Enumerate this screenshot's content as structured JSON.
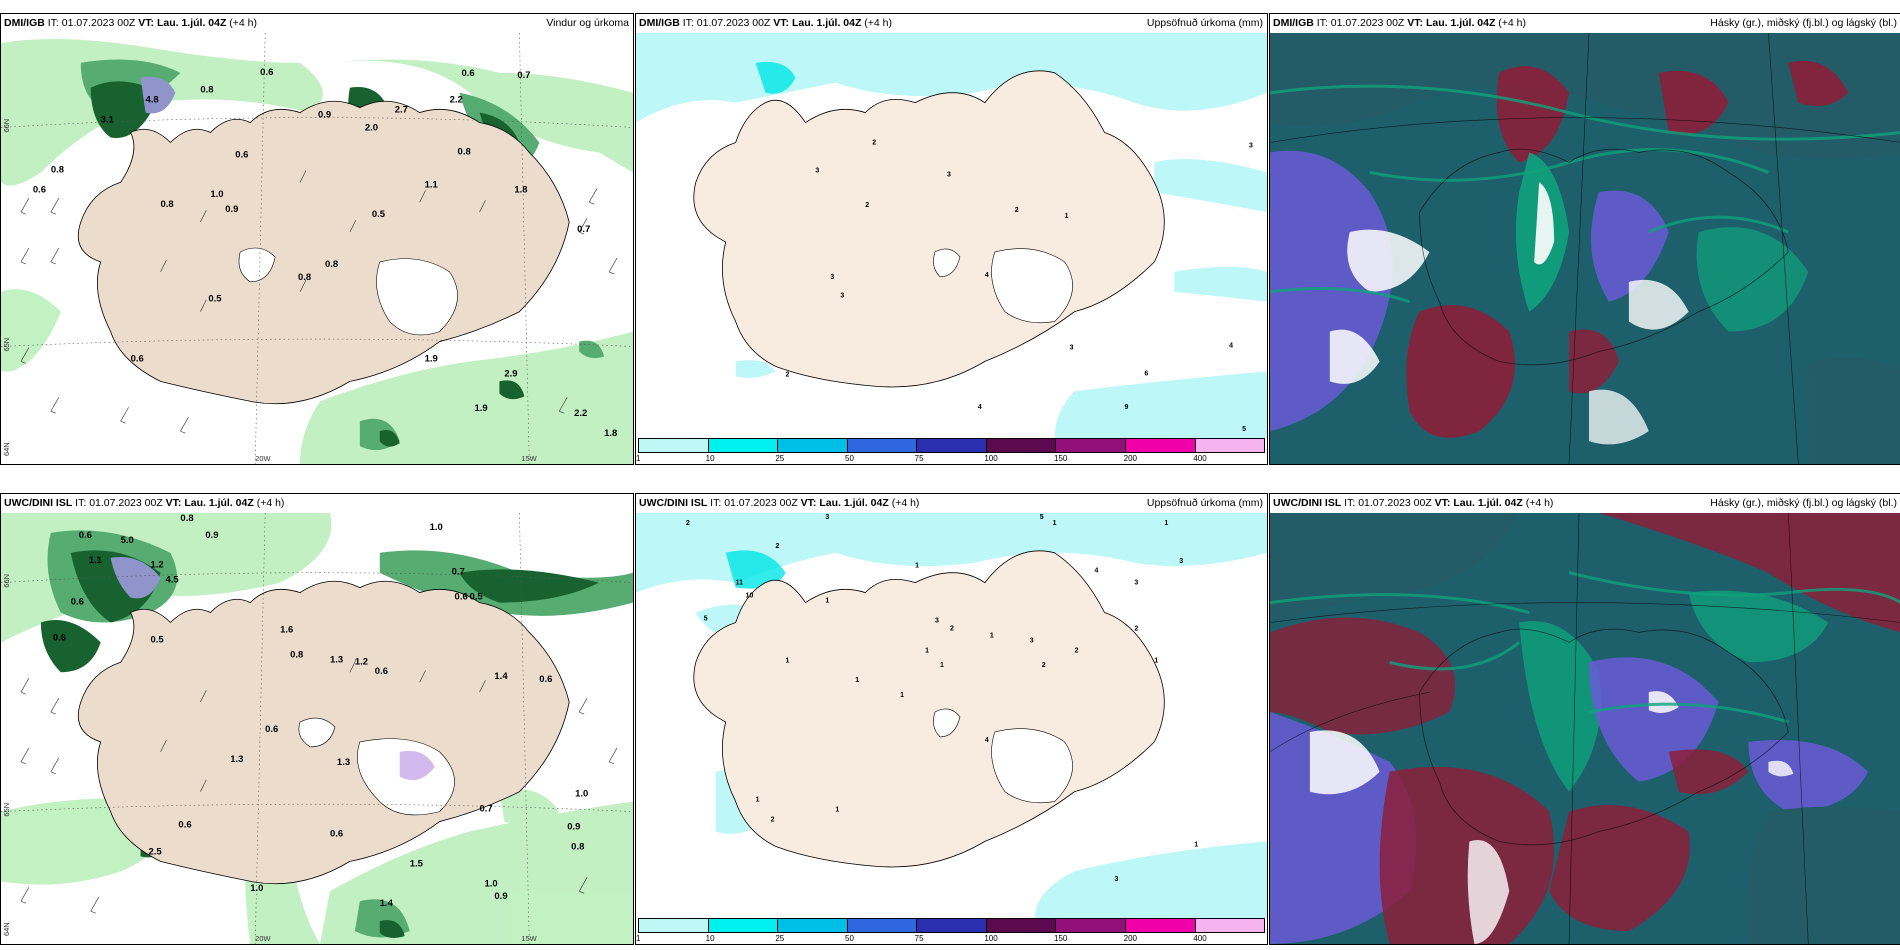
{
  "row1": {
    "p1": {
      "model": "DMI/IGB",
      "it_label": "IT:",
      "it": "01.07.2023 00Z",
      "vt_label": "VT:",
      "vt": "Lau. 1.júl. 04Z",
      "lead": "(+4 h)",
      "product": "Vindur og úrkoma",
      "values": [
        "0.6",
        "0.8",
        "3.1",
        "4.8",
        "0.8",
        "0.6",
        "0.6",
        "0.8",
        "1.0",
        "0.9",
        "0.6",
        "0.7",
        "2.7",
        "2.2",
        "0.9",
        "2.0",
        "0.8",
        "1.1",
        "0.5",
        "1.8",
        "0.7",
        "0.8",
        "0.5",
        "0.6",
        "0.8",
        "1.9",
        "1.9",
        "2.2",
        "1.8",
        "2.9"
      ],
      "axis": [
        "66N",
        "65N",
        "64N",
        "25W",
        "20W",
        "15W"
      ]
    },
    "p2": {
      "model": "DMI/IGB",
      "it_label": "IT:",
      "it": "01.07.2023 00Z",
      "vt_label": "VT:",
      "vt": "Lau. 1.júl. 04Z",
      "lead": "(+4 h)",
      "product": "Uppsöfnuð úrkoma (mm)",
      "values": [
        "2",
        "3",
        "3",
        "2",
        "2",
        "1",
        "3",
        "4",
        "3",
        "3",
        "2",
        "4",
        "6",
        "9",
        "4",
        "5",
        "3"
      ]
    },
    "p3": {
      "model": "DMI/IGB",
      "it_label": "IT:",
      "it": "01.07.2023 00Z",
      "vt_label": "VT:",
      "vt": "Lau. 1.júl. 04Z",
      "lead": "(+4 h)",
      "product": "Hásky (gr.), miðský (fj.bl.) og lágský (bl.)"
    }
  },
  "row2": {
    "p1": {
      "model": "UWC/DINI ISL",
      "it_label": "IT:",
      "it": "01.07.2023 00Z",
      "vt_label": "VT:",
      "vt": "Lau. 1.júl. 04Z",
      "lead": "(+4 h)",
      "product": "",
      "values": [
        "0.6",
        "0.8",
        "0.9",
        "1.0",
        "5.0",
        "4.5",
        "1.1",
        "1.2",
        "0.6",
        "0.6",
        "0.5",
        "0.8",
        "1.3",
        "1.2",
        "0.6",
        "0.7",
        "0.6",
        "0.5",
        "1.3",
        "1.4",
        "0.6",
        "1.6",
        "2.5",
        "0.6",
        "0.7",
        "1.0",
        "0.9",
        "0.8",
        "0.6",
        "1.0",
        "1.4",
        "1.5",
        "0.6",
        "1.0",
        "0.9",
        "1.3"
      ],
      "axis": [
        "66N",
        "65N",
        "64N",
        "25W",
        "20W",
        "15W"
      ]
    },
    "p2": {
      "model": "UWC/DINI ISL",
      "it_label": "IT:",
      "it": "01.07.2023 00Z",
      "vt_label": "VT:",
      "vt": "Lau. 1.júl. 04Z",
      "lead": "(+4 h)",
      "product": "Uppsöfnuð úrkoma (mm)",
      "values": [
        "2",
        "3",
        "1",
        "5",
        "1",
        "3",
        "5",
        "2",
        "10",
        "11",
        "1",
        "1",
        "1",
        "1",
        "1",
        "3",
        "2",
        "1",
        "1",
        "2",
        "3",
        "2",
        "1",
        "4",
        "4",
        "3",
        "2",
        "1",
        "1",
        "2",
        "3",
        "1",
        "1"
      ]
    },
    "p3": {
      "model": "UWC/DINI ISL",
      "it_label": "IT:",
      "it": "01.07.2023 00Z",
      "vt_label": "VT:",
      "vt": "Lau. 1.júl. 04Z",
      "lead": "(+4 h)",
      "product": "Hásky (gr.), miðský (fj.bl.) og lágský (bl.)"
    }
  },
  "colorbar": {
    "ticks": [
      "1",
      "10",
      "25",
      "50",
      "75",
      "100",
      "150",
      "200",
      "400"
    ],
    "colors": [
      "#bff7f7",
      "#00f0f0",
      "#00bfe6",
      "#2f67e0",
      "#2a2fb0",
      "#5b0a50",
      "#930f7a",
      "#f000a8",
      "#f5b4f0"
    ]
  },
  "colors": {
    "land": "#ecdccb",
    "sea": "#ffffff",
    "precip_light": "#bff0bf",
    "precip_mid": "#4ea86a",
    "precip_dark": "#0b5a23",
    "accum_light": "#bdf7f7",
    "cloud_high": "#0fa37c",
    "cloud_mid": "#1d5f6b",
    "cloud_low": "#6a5bd6",
    "cloud_red": "#8c1f3a"
  }
}
